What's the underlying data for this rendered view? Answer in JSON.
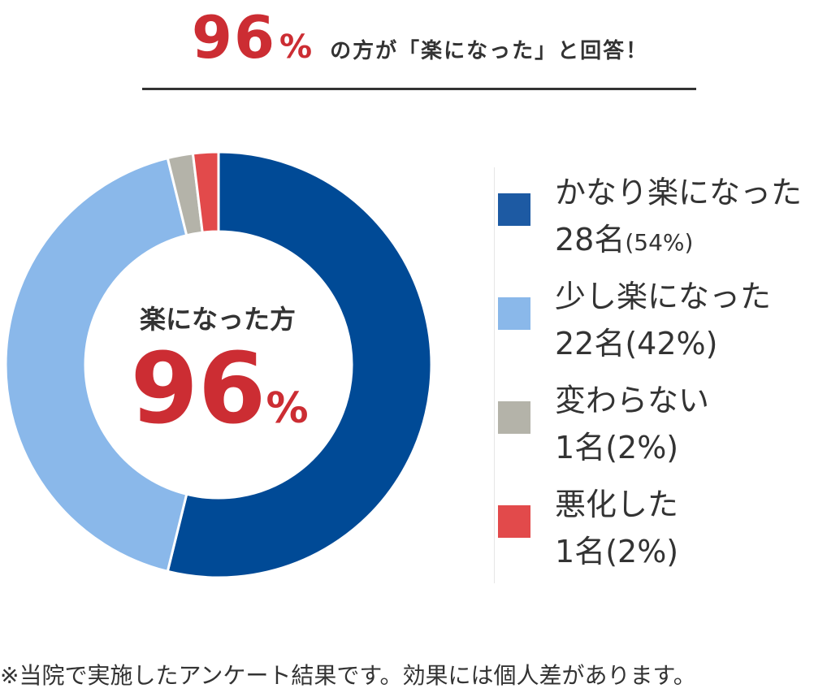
{
  "headline": {
    "number": "96",
    "unit": "%",
    "text": "の方が「楽になった」と回答！"
  },
  "center": {
    "label": "楽になった方",
    "number": "96",
    "unit": "%"
  },
  "chart_data": {
    "type": "pie",
    "categories": [
      "かなり楽になった",
      "少し楽になった",
      "変わらない",
      "悪化した"
    ],
    "values": [
      28,
      22,
      1,
      1
    ],
    "percents": [
      54,
      42,
      2,
      2
    ],
    "colors": [
      "#004a96",
      "#8ab8ea",
      "#b4b3a9",
      "#e24a4b"
    ],
    "title": "",
    "legend_position": "right"
  },
  "legend": [
    {
      "label": "かなり楽になった",
      "count": "28名",
      "pct": "(54%)",
      "color": "#1d5aa3"
    },
    {
      "label": "少し楽になった",
      "count": "22名",
      "pct": "(42%)",
      "color": "#8ab8ea"
    },
    {
      "label": "変わらない",
      "count": "1名",
      "pct": "(2%)",
      "color": "#b4b3a9"
    },
    {
      "label": "悪化した",
      "count": "1名",
      "pct": "(2%)",
      "color": "#e24a4b"
    }
  ],
  "footnote": "※当院で実施したアンケート結果です。効果には個人差があります。"
}
